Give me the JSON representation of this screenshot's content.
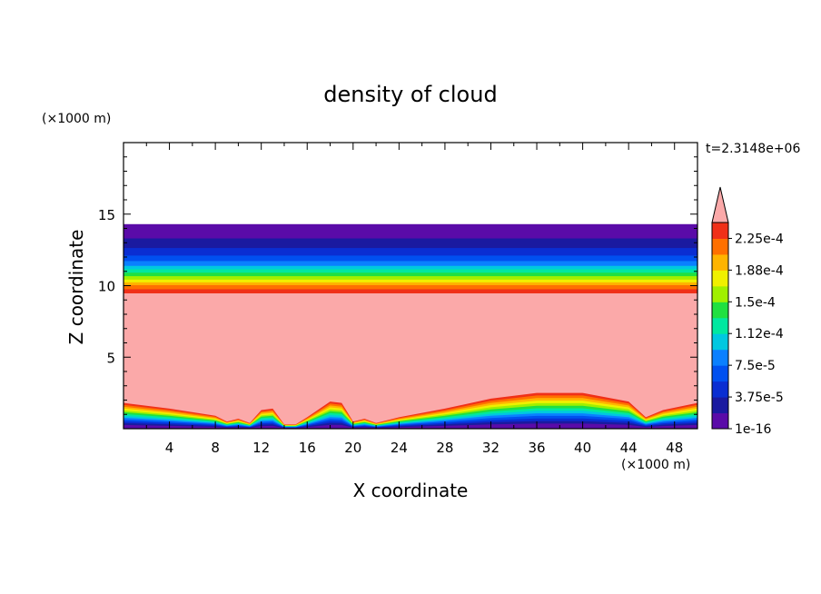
{
  "chart_data": {
    "type": "heatmap",
    "title": "density of cloud",
    "xlabel": "X coordinate",
    "ylabel": "Z coordinate",
    "x_unit": "(×1000 m)",
    "z_unit": "(×1000 m)",
    "time_label": "t=2.3148e+06",
    "xlim": [
      0,
      50
    ],
    "zlim": [
      0,
      20
    ],
    "x_ticks": [
      4,
      8,
      12,
      16,
      20,
      24,
      28,
      32,
      36,
      40,
      44,
      48
    ],
    "z_ticks": [
      5,
      10,
      15
    ],
    "colorbar": {
      "tick_labels": [
        "1e-16",
        "3.75e-5",
        "7.5e-5",
        "1.12e-4",
        "1.5e-4",
        "1.88e-4",
        "2.25e-4"
      ],
      "levels": 12,
      "overflow_color": "#FBA9A9",
      "colors": [
        "#5A0BA8",
        "#1A1AA0",
        "#0A2ED2",
        "#0050F0",
        "#0A80FF",
        "#00C8E0",
        "#00E8A0",
        "#20E040",
        "#A0F000",
        "#F0F000",
        "#FFB400",
        "#FF7000",
        "#F03018"
      ]
    },
    "structure": {
      "upper_layer_base_km": 9.5,
      "upper_layer_top_km": 14.3,
      "surface_layer_profile_x": [
        0,
        4,
        8,
        9,
        10,
        11,
        12,
        13,
        14,
        15,
        16,
        18,
        19,
        20,
        21,
        22,
        24,
        28,
        32,
        36,
        40,
        44,
        45.5,
        47,
        50
      ],
      "surface_layer_profile_z": [
        1.8,
        1.4,
        0.9,
        0.5,
        0.7,
        0.4,
        1.3,
        1.4,
        0.3,
        0.3,
        0.8,
        1.9,
        1.8,
        0.5,
        0.7,
        0.4,
        0.8,
        1.4,
        2.1,
        2.5,
        2.5,
        1.9,
        0.8,
        1.3,
        1.8
      ]
    }
  }
}
